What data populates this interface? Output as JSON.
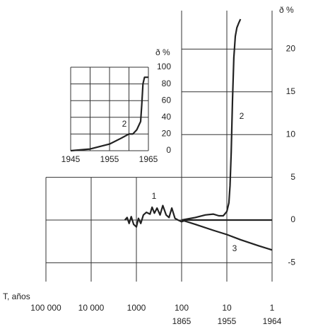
{
  "chart_data": [
    {
      "type": "line",
      "x_label": "T, años",
      "y_label": "ð %",
      "xscale": "log",
      "grid": true,
      "color": "#222222",
      "xlim": [
        100000,
        1
      ],
      "ylim": [
        -7.2,
        24.5
      ],
      "xticks": [
        {
          "value": 100000,
          "label": "100 000"
        },
        {
          "value": 10000,
          "label": "10 000"
        },
        1000,
        100,
        10,
        1
      ],
      "secondary_xticks": [
        {
          "value": 100,
          "label": "1865"
        },
        {
          "value": 10,
          "label": "1955"
        },
        {
          "value": 1,
          "label": "1964"
        }
      ],
      "yticks": [
        -5,
        0,
        5,
        10,
        15,
        20
      ],
      "series": [
        {
          "name": "1",
          "x": [
            1800,
            1600,
            1450,
            1300,
            1150,
            1000,
            900,
            800,
            700,
            600,
            500,
            450,
            400,
            350,
            300,
            260,
            220,
            190,
            165,
            140,
            120,
            100,
            80,
            50,
            20,
            10,
            5,
            1
          ],
          "values": [
            0,
            0.3,
            -0.4,
            0.4,
            -0.5,
            -0.8,
            0.2,
            -0.4,
            0.6,
            0.9,
            0.7,
            1.5,
            0.8,
            1.4,
            0.6,
            1.7,
            0.6,
            0.3,
            1.4,
            0.2,
            0,
            -0.2,
            0,
            0,
            0,
            0,
            0,
            0
          ]
        },
        {
          "name": "2",
          "x": [
            100,
            50,
            30,
            20,
            15,
            12,
            10,
            9,
            8.5,
            8,
            7.5,
            7,
            6.5,
            6,
            5.5,
            5
          ],
          "values": [
            0,
            0.3,
            0.6,
            0.7,
            0.5,
            0.5,
            1,
            2,
            4,
            8,
            14,
            19,
            21.5,
            22.5,
            23,
            23.5
          ]
        },
        {
          "name": "3",
          "x": [
            100,
            50,
            20,
            10,
            5,
            2,
            1
          ],
          "values": [
            0,
            -0.5,
            -1.2,
            -1.7,
            -2.3,
            -3,
            -3.5
          ]
        }
      ]
    },
    {
      "type": "line",
      "y_label": "ð %",
      "grid": true,
      "color": "#222222",
      "xlim": [
        1945,
        1965
      ],
      "ylim": [
        0,
        100
      ],
      "xticks": [
        1945,
        1955,
        1965
      ],
      "xgrid": [
        1945,
        1950,
        1955,
        1960,
        1965
      ],
      "yticks": [
        0,
        20,
        40,
        60,
        80,
        100
      ],
      "series": [
        {
          "name": "2",
          "x": [
            1945,
            1950,
            1955,
            1958,
            1960,
            1961,
            1962,
            1963,
            1963.3,
            1963.6,
            1964,
            1965
          ],
          "values": [
            0,
            2,
            8,
            15,
            20,
            20,
            25,
            35,
            55,
            80,
            88,
            88
          ]
        }
      ]
    }
  ]
}
